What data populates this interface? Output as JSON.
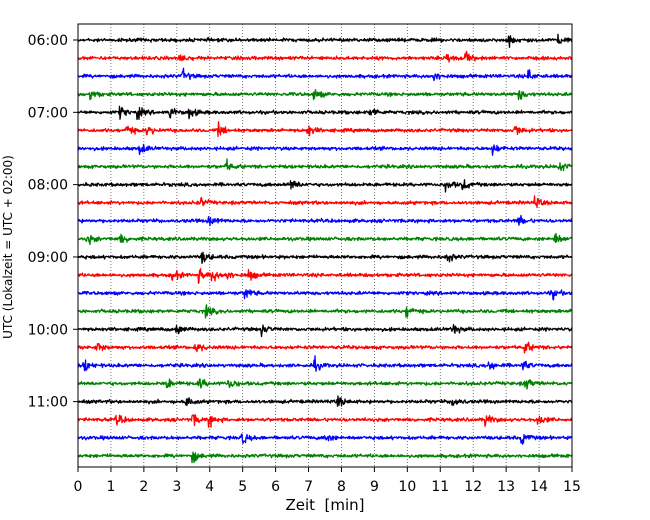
{
  "chart_data": {
    "type": "line",
    "xlabel": "Zeit  [min]",
    "ylabel": "UTC (Lokalzeit = UTC + 02:00)",
    "xlim": [
      0,
      15
    ],
    "x_ticks": [
      "0",
      "1",
      "2",
      "3",
      "4",
      "5",
      "6",
      "7",
      "8",
      "9",
      "10",
      "11",
      "12",
      "13",
      "14",
      "15"
    ],
    "y_ticks": [
      "06:00",
      "07:00",
      "08:00",
      "09:00",
      "10:00",
      "11:00"
    ],
    "grid": "vertical dotted",
    "trace_interval_min": 15,
    "trace_colors": [
      "#000000",
      "#ff0000",
      "#0000ff",
      "#008000"
    ],
    "traces": [
      {
        "start": "06:00",
        "color": "#000000",
        "events_min": [
          13.1,
          14.6
        ]
      },
      {
        "start": "06:15",
        "color": "#ff0000",
        "events_min": [
          11.2,
          3.1,
          11.8
        ]
      },
      {
        "start": "06:30",
        "color": "#0000ff",
        "events_min": [
          10.8,
          13.7,
          3.2
        ]
      },
      {
        "start": "06:45",
        "color": "#008000",
        "events_min": [
          0.4,
          13.4,
          7.2
        ]
      },
      {
        "start": "07:00",
        "color": "#000000",
        "events_min": [
          1.3,
          1.8,
          2.8,
          3.4,
          8.9
        ]
      },
      {
        "start": "07:15",
        "color": "#ff0000",
        "events_min": [
          1.5,
          2.1,
          4.3,
          7.0,
          13.3
        ]
      },
      {
        "start": "07:30",
        "color": "#0000ff",
        "events_min": [
          1.9,
          12.6
        ]
      },
      {
        "start": "07:45",
        "color": "#008000",
        "events_min": [
          4.5,
          14.6
        ]
      },
      {
        "start": "08:00",
        "color": "#000000",
        "events_min": [
          6.5,
          11.2,
          11.7
        ]
      },
      {
        "start": "08:15",
        "color": "#ff0000",
        "events_min": [
          3.7,
          13.9
        ]
      },
      {
        "start": "08:30",
        "color": "#0000ff",
        "events_min": [
          13.4,
          4.0
        ]
      },
      {
        "start": "08:45",
        "color": "#008000",
        "events_min": [
          0.3,
          1.3,
          14.5
        ]
      },
      {
        "start": "09:00",
        "color": "#000000",
        "events_min": [
          3.8,
          11.2
        ]
      },
      {
        "start": "09:15",
        "color": "#ff0000",
        "events_min": [
          2.9,
          3.7,
          4.1,
          4.5,
          5.2
        ]
      },
      {
        "start": "09:30",
        "color": "#0000ff",
        "events_min": [
          14.4,
          5.1
        ]
      },
      {
        "start": "09:45",
        "color": "#008000",
        "events_min": [
          3.9,
          10.0
        ]
      },
      {
        "start": "10:00",
        "color": "#000000",
        "events_min": [
          3.0,
          5.6,
          11.4
        ]
      },
      {
        "start": "10:15",
        "color": "#ff0000",
        "events_min": [
          0.6,
          3.6,
          13.6
        ]
      },
      {
        "start": "10:30",
        "color": "#0000ff",
        "events_min": [
          0.2,
          7.2,
          12.5,
          13.5
        ]
      },
      {
        "start": "10:45",
        "color": "#008000",
        "events_min": [
          2.7,
          3.7,
          4.6,
          13.6
        ]
      },
      {
        "start": "11:00",
        "color": "#000000",
        "events_min": [
          3.3,
          7.9,
          11.4
        ]
      },
      {
        "start": "11:15",
        "color": "#ff0000",
        "events_min": [
          1.2,
          3.5,
          4.0,
          12.4,
          14.0
        ]
      },
      {
        "start": "11:30",
        "color": "#0000ff",
        "events_min": [
          5.0,
          7.5,
          13.5
        ]
      },
      {
        "start": "11:45",
        "color": "#008000",
        "events_min": [
          3.5
        ]
      }
    ]
  }
}
